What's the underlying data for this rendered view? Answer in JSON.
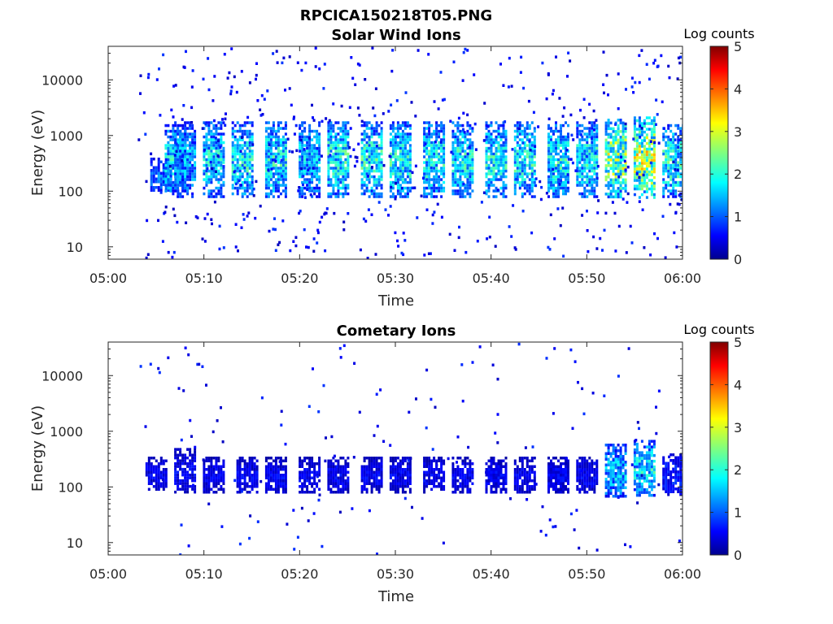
{
  "figure": {
    "title": "RPCICA150218T05.PNG"
  },
  "chart_data": [
    {
      "type": "heatmap",
      "title": "Solar Wind Ions",
      "xlabel": "Time",
      "ylabel": "Energy (eV)",
      "x_ticks": [
        "05:00",
        "05:10",
        "05:20",
        "05:30",
        "05:40",
        "05:50",
        "06:00"
      ],
      "xlim": [
        "05:00",
        "06:00"
      ],
      "y_ticks": [
        10,
        100,
        1000,
        10000
      ],
      "y_tick_labels": [
        "10",
        "100",
        "1000",
        "10000"
      ],
      "ylim": [
        6,
        40000
      ],
      "y_scale": "log",
      "colorbar": {
        "title": "Log counts",
        "min": 0,
        "max": 5,
        "ticks": [
          "0",
          "1",
          "2",
          "3",
          "4",
          "5"
        ],
        "colormap": "jet"
      },
      "blocks": [
        {
          "t": 5.5,
          "lo": 100,
          "hi": 400,
          "c": 1.2
        },
        {
          "t": 7.0,
          "lo": 90,
          "hi": 1600,
          "c": 1.8
        },
        {
          "t": 8.0,
          "lo": 80,
          "hi": 1800,
          "c": 1.5
        },
        {
          "t": 11.0,
          "lo": 80,
          "hi": 1800,
          "c": 1.8
        },
        {
          "t": 14.0,
          "lo": 80,
          "hi": 1800,
          "c": 1.9
        },
        {
          "t": 17.5,
          "lo": 80,
          "hi": 1800,
          "c": 1.9
        },
        {
          "t": 21.0,
          "lo": 80,
          "hi": 1800,
          "c": 1.6
        },
        {
          "t": 24.0,
          "lo": 80,
          "hi": 1800,
          "c": 2.0
        },
        {
          "t": 27.5,
          "lo": 80,
          "hi": 1800,
          "c": 2.0
        },
        {
          "t": 30.5,
          "lo": 80,
          "hi": 1800,
          "c": 1.9
        },
        {
          "t": 34.0,
          "lo": 80,
          "hi": 1800,
          "c": 1.9
        },
        {
          "t": 37.0,
          "lo": 80,
          "hi": 1800,
          "c": 1.9
        },
        {
          "t": 40.5,
          "lo": 80,
          "hi": 1800,
          "c": 1.9
        },
        {
          "t": 43.5,
          "lo": 80,
          "hi": 1800,
          "c": 2.0
        },
        {
          "t": 47.0,
          "lo": 80,
          "hi": 1800,
          "c": 1.9
        },
        {
          "t": 50.0,
          "lo": 80,
          "hi": 1800,
          "c": 1.9
        },
        {
          "t": 53.0,
          "lo": 80,
          "hi": 2000,
          "c": 2.6
        },
        {
          "t": 56.0,
          "lo": 80,
          "hi": 2200,
          "c": 2.8
        },
        {
          "t": 59.0,
          "lo": 80,
          "hi": 1600,
          "c": 2.0
        }
      ]
    },
    {
      "type": "heatmap",
      "title": "Cometary Ions",
      "xlabel": "Time",
      "ylabel": "Energy (eV)",
      "x_ticks": [
        "05:00",
        "05:10",
        "05:20",
        "05:30",
        "05:40",
        "05:50",
        "06:00"
      ],
      "xlim": [
        "05:00",
        "06:00"
      ],
      "y_ticks": [
        10,
        100,
        1000,
        10000
      ],
      "y_tick_labels": [
        "10",
        "100",
        "1000",
        "10000"
      ],
      "ylim": [
        6,
        40000
      ],
      "y_scale": "log",
      "colorbar": {
        "title": "Log counts",
        "min": 0,
        "max": 5,
        "ticks": [
          "0",
          "1",
          "2",
          "3",
          "4",
          "5"
        ],
        "colormap": "jet"
      },
      "blocks": [
        {
          "t": 5.0,
          "lo": 90,
          "hi": 350,
          "c": 0.6
        },
        {
          "t": 8.0,
          "lo": 80,
          "hi": 500,
          "c": 0.6
        },
        {
          "t": 11.0,
          "lo": 80,
          "hi": 350,
          "c": 0.6
        },
        {
          "t": 14.5,
          "lo": 80,
          "hi": 350,
          "c": 0.6
        },
        {
          "t": 17.5,
          "lo": 80,
          "hi": 350,
          "c": 0.6
        },
        {
          "t": 21.0,
          "lo": 80,
          "hi": 350,
          "c": 0.6
        },
        {
          "t": 24.0,
          "lo": 80,
          "hi": 350,
          "c": 0.6
        },
        {
          "t": 27.5,
          "lo": 80,
          "hi": 350,
          "c": 0.6
        },
        {
          "t": 30.5,
          "lo": 80,
          "hi": 350,
          "c": 0.6
        },
        {
          "t": 34.0,
          "lo": 80,
          "hi": 350,
          "c": 0.6
        },
        {
          "t": 37.0,
          "lo": 80,
          "hi": 350,
          "c": 0.6
        },
        {
          "t": 40.5,
          "lo": 80,
          "hi": 350,
          "c": 0.6
        },
        {
          "t": 43.5,
          "lo": 80,
          "hi": 350,
          "c": 0.6
        },
        {
          "t": 47.0,
          "lo": 80,
          "hi": 350,
          "c": 0.6
        },
        {
          "t": 50.0,
          "lo": 80,
          "hi": 350,
          "c": 0.6
        },
        {
          "t": 53.0,
          "lo": 70,
          "hi": 600,
          "c": 1.6
        },
        {
          "t": 56.0,
          "lo": 70,
          "hi": 700,
          "c": 1.8
        },
        {
          "t": 59.0,
          "lo": 70,
          "hi": 400,
          "c": 0.8
        }
      ]
    }
  ]
}
